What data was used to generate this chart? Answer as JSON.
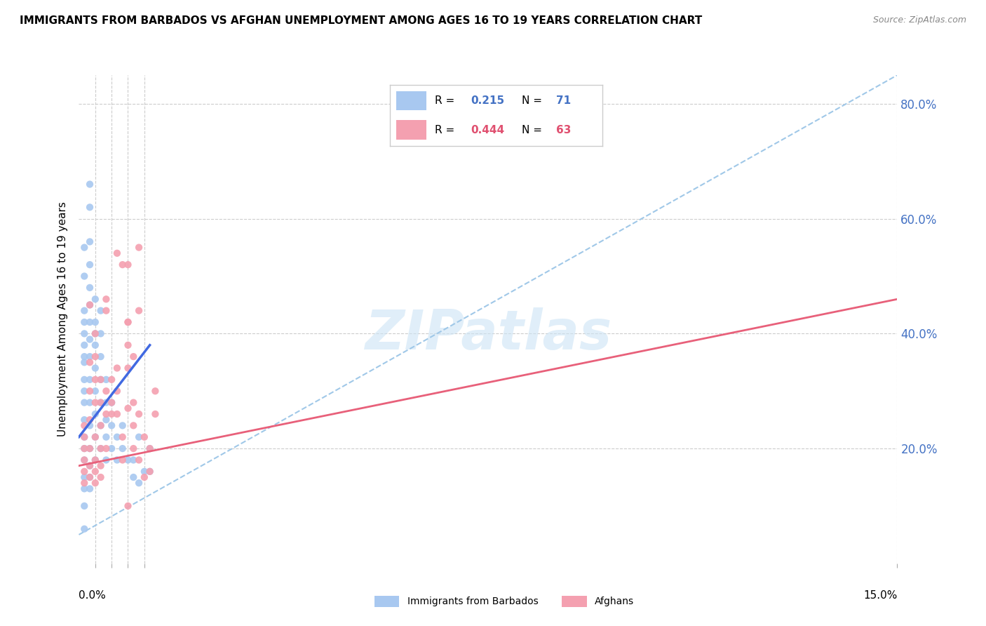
{
  "title": "IMMIGRANTS FROM BARBADOS VS AFGHAN UNEMPLOYMENT AMONG AGES 16 TO 19 YEARS CORRELATION CHART",
  "source": "Source: ZipAtlas.com",
  "ylabel": "Unemployment Among Ages 16 to 19 years",
  "right_yticks": [
    0.2,
    0.4,
    0.6,
    0.8
  ],
  "right_yticklabels": [
    "20.0%",
    "40.0%",
    "60.0%",
    "80.0%"
  ],
  "barbados_color": "#a8c8f0",
  "afghan_color": "#f4a0b0",
  "barbados_line_color": "#4169e1",
  "afghan_line_color": "#e8607a",
  "dashed_line_color": "#a0c8e8",
  "xlim": [
    0.0,
    0.15
  ],
  "ylim": [
    0.0,
    0.85
  ],
  "barbados_scatter": [
    [
      0.001,
      0.18
    ],
    [
      0.001,
      0.15
    ],
    [
      0.001,
      0.22
    ],
    [
      0.001,
      0.2
    ],
    [
      0.001,
      0.25
    ],
    [
      0.001,
      0.28
    ],
    [
      0.001,
      0.3
    ],
    [
      0.001,
      0.32
    ],
    [
      0.001,
      0.35
    ],
    [
      0.001,
      0.38
    ],
    [
      0.001,
      0.4
    ],
    [
      0.001,
      0.42
    ],
    [
      0.001,
      0.44
    ],
    [
      0.001,
      0.36
    ],
    [
      0.001,
      0.5
    ],
    [
      0.001,
      0.55
    ],
    [
      0.002,
      0.2
    ],
    [
      0.002,
      0.24
    ],
    [
      0.002,
      0.28
    ],
    [
      0.002,
      0.32
    ],
    [
      0.002,
      0.36
    ],
    [
      0.002,
      0.39
    ],
    [
      0.002,
      0.42
    ],
    [
      0.002,
      0.45
    ],
    [
      0.002,
      0.48
    ],
    [
      0.002,
      0.52
    ],
    [
      0.002,
      0.56
    ],
    [
      0.002,
      0.62
    ],
    [
      0.002,
      0.66
    ],
    [
      0.003,
      0.18
    ],
    [
      0.003,
      0.22
    ],
    [
      0.003,
      0.26
    ],
    [
      0.003,
      0.3
    ],
    [
      0.003,
      0.34
    ],
    [
      0.003,
      0.38
    ],
    [
      0.003,
      0.42
    ],
    [
      0.003,
      0.46
    ],
    [
      0.003,
      0.4
    ],
    [
      0.004,
      0.2
    ],
    [
      0.004,
      0.24
    ],
    [
      0.004,
      0.28
    ],
    [
      0.004,
      0.32
    ],
    [
      0.004,
      0.36
    ],
    [
      0.004,
      0.4
    ],
    [
      0.004,
      0.44
    ],
    [
      0.005,
      0.18
    ],
    [
      0.005,
      0.22
    ],
    [
      0.005,
      0.25
    ],
    [
      0.005,
      0.28
    ],
    [
      0.005,
      0.32
    ],
    [
      0.006,
      0.2
    ],
    [
      0.006,
      0.24
    ],
    [
      0.006,
      0.28
    ],
    [
      0.007,
      0.18
    ],
    [
      0.007,
      0.22
    ],
    [
      0.008,
      0.2
    ],
    [
      0.008,
      0.24
    ],
    [
      0.009,
      0.18
    ],
    [
      0.01,
      0.15
    ],
    [
      0.01,
      0.18
    ],
    [
      0.011,
      0.14
    ],
    [
      0.011,
      0.22
    ],
    [
      0.012,
      0.16
    ],
    [
      0.013,
      0.16
    ],
    [
      0.013,
      0.2
    ],
    [
      0.001,
      0.1
    ],
    [
      0.001,
      0.06
    ],
    [
      0.001,
      0.13
    ],
    [
      0.002,
      0.13
    ],
    [
      0.002,
      0.15
    ],
    [
      0.002,
      0.17
    ]
  ],
  "afghan_scatter": [
    [
      0.001,
      0.18
    ],
    [
      0.001,
      0.2
    ],
    [
      0.001,
      0.22
    ],
    [
      0.001,
      0.24
    ],
    [
      0.001,
      0.16
    ],
    [
      0.001,
      0.14
    ],
    [
      0.002,
      0.2
    ],
    [
      0.002,
      0.25
    ],
    [
      0.002,
      0.3
    ],
    [
      0.002,
      0.35
    ],
    [
      0.002,
      0.45
    ],
    [
      0.002,
      0.15
    ],
    [
      0.002,
      0.17
    ],
    [
      0.003,
      0.18
    ],
    [
      0.003,
      0.22
    ],
    [
      0.003,
      0.28
    ],
    [
      0.003,
      0.32
    ],
    [
      0.003,
      0.36
    ],
    [
      0.003,
      0.4
    ],
    [
      0.003,
      0.14
    ],
    [
      0.003,
      0.16
    ],
    [
      0.004,
      0.2
    ],
    [
      0.004,
      0.24
    ],
    [
      0.004,
      0.28
    ],
    [
      0.004,
      0.32
    ],
    [
      0.004,
      0.15
    ],
    [
      0.004,
      0.17
    ],
    [
      0.005,
      0.26
    ],
    [
      0.005,
      0.3
    ],
    [
      0.005,
      0.2
    ],
    [
      0.006,
      0.28
    ],
    [
      0.006,
      0.32
    ],
    [
      0.006,
      0.26
    ],
    [
      0.007,
      0.26
    ],
    [
      0.007,
      0.3
    ],
    [
      0.007,
      0.34
    ],
    [
      0.008,
      0.18
    ],
    [
      0.008,
      0.22
    ],
    [
      0.009,
      0.27
    ],
    [
      0.01,
      0.2
    ],
    [
      0.01,
      0.24
    ],
    [
      0.011,
      0.18
    ],
    [
      0.012,
      0.15
    ],
    [
      0.012,
      0.22
    ],
    [
      0.013,
      0.16
    ],
    [
      0.013,
      0.2
    ],
    [
      0.014,
      0.26
    ],
    [
      0.014,
      0.3
    ],
    [
      0.005,
      0.44
    ],
    [
      0.005,
      0.46
    ],
    [
      0.008,
      0.52
    ],
    [
      0.009,
      0.34
    ],
    [
      0.009,
      0.38
    ],
    [
      0.009,
      0.42
    ],
    [
      0.01,
      0.28
    ],
    [
      0.011,
      0.26
    ],
    [
      0.007,
      0.54
    ],
    [
      0.009,
      0.52
    ],
    [
      0.011,
      0.44
    ],
    [
      0.009,
      0.1
    ],
    [
      0.009,
      0.42
    ],
    [
      0.01,
      0.36
    ],
    [
      0.011,
      0.55
    ]
  ],
  "barbados_line": [
    [
      0.0,
      0.22
    ],
    [
      0.013,
      0.38
    ]
  ],
  "afghan_line": [
    [
      0.0,
      0.17
    ],
    [
      0.15,
      0.46
    ]
  ],
  "dashed_line": [
    [
      0.0,
      0.05
    ],
    [
      0.15,
      0.85
    ]
  ]
}
